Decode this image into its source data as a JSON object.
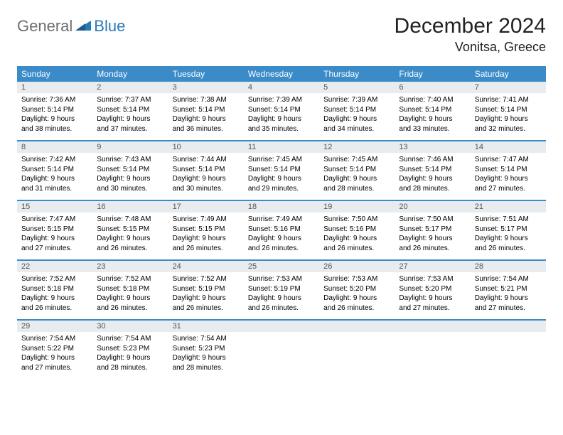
{
  "logo": {
    "text_general": "General",
    "text_blue": "Blue"
  },
  "title": {
    "month": "December 2024",
    "location": "Vonitsa, Greece"
  },
  "colors": {
    "header_bg": "#3b8bc9",
    "header_text": "#ffffff",
    "day_number_bg": "#e8ecef",
    "day_number_text": "#555555",
    "border": "#3b8bc9",
    "logo_general": "#6e6e6e",
    "logo_blue": "#2a7ab8"
  },
  "day_names": [
    "Sunday",
    "Monday",
    "Tuesday",
    "Wednesday",
    "Thursday",
    "Friday",
    "Saturday"
  ],
  "weeks": [
    [
      {
        "num": "1",
        "sunrise": "Sunrise: 7:36 AM",
        "sunset": "Sunset: 5:14 PM",
        "daylight": "Daylight: 9 hours and 38 minutes."
      },
      {
        "num": "2",
        "sunrise": "Sunrise: 7:37 AM",
        "sunset": "Sunset: 5:14 PM",
        "daylight": "Daylight: 9 hours and 37 minutes."
      },
      {
        "num": "3",
        "sunrise": "Sunrise: 7:38 AM",
        "sunset": "Sunset: 5:14 PM",
        "daylight": "Daylight: 9 hours and 36 minutes."
      },
      {
        "num": "4",
        "sunrise": "Sunrise: 7:39 AM",
        "sunset": "Sunset: 5:14 PM",
        "daylight": "Daylight: 9 hours and 35 minutes."
      },
      {
        "num": "5",
        "sunrise": "Sunrise: 7:39 AM",
        "sunset": "Sunset: 5:14 PM",
        "daylight": "Daylight: 9 hours and 34 minutes."
      },
      {
        "num": "6",
        "sunrise": "Sunrise: 7:40 AM",
        "sunset": "Sunset: 5:14 PM",
        "daylight": "Daylight: 9 hours and 33 minutes."
      },
      {
        "num": "7",
        "sunrise": "Sunrise: 7:41 AM",
        "sunset": "Sunset: 5:14 PM",
        "daylight": "Daylight: 9 hours and 32 minutes."
      }
    ],
    [
      {
        "num": "8",
        "sunrise": "Sunrise: 7:42 AM",
        "sunset": "Sunset: 5:14 PM",
        "daylight": "Daylight: 9 hours and 31 minutes."
      },
      {
        "num": "9",
        "sunrise": "Sunrise: 7:43 AM",
        "sunset": "Sunset: 5:14 PM",
        "daylight": "Daylight: 9 hours and 30 minutes."
      },
      {
        "num": "10",
        "sunrise": "Sunrise: 7:44 AM",
        "sunset": "Sunset: 5:14 PM",
        "daylight": "Daylight: 9 hours and 30 minutes."
      },
      {
        "num": "11",
        "sunrise": "Sunrise: 7:45 AM",
        "sunset": "Sunset: 5:14 PM",
        "daylight": "Daylight: 9 hours and 29 minutes."
      },
      {
        "num": "12",
        "sunrise": "Sunrise: 7:45 AM",
        "sunset": "Sunset: 5:14 PM",
        "daylight": "Daylight: 9 hours and 28 minutes."
      },
      {
        "num": "13",
        "sunrise": "Sunrise: 7:46 AM",
        "sunset": "Sunset: 5:14 PM",
        "daylight": "Daylight: 9 hours and 28 minutes."
      },
      {
        "num": "14",
        "sunrise": "Sunrise: 7:47 AM",
        "sunset": "Sunset: 5:14 PM",
        "daylight": "Daylight: 9 hours and 27 minutes."
      }
    ],
    [
      {
        "num": "15",
        "sunrise": "Sunrise: 7:47 AM",
        "sunset": "Sunset: 5:15 PM",
        "daylight": "Daylight: 9 hours and 27 minutes."
      },
      {
        "num": "16",
        "sunrise": "Sunrise: 7:48 AM",
        "sunset": "Sunset: 5:15 PM",
        "daylight": "Daylight: 9 hours and 26 minutes."
      },
      {
        "num": "17",
        "sunrise": "Sunrise: 7:49 AM",
        "sunset": "Sunset: 5:15 PM",
        "daylight": "Daylight: 9 hours and 26 minutes."
      },
      {
        "num": "18",
        "sunrise": "Sunrise: 7:49 AM",
        "sunset": "Sunset: 5:16 PM",
        "daylight": "Daylight: 9 hours and 26 minutes."
      },
      {
        "num": "19",
        "sunrise": "Sunrise: 7:50 AM",
        "sunset": "Sunset: 5:16 PM",
        "daylight": "Daylight: 9 hours and 26 minutes."
      },
      {
        "num": "20",
        "sunrise": "Sunrise: 7:50 AM",
        "sunset": "Sunset: 5:17 PM",
        "daylight": "Daylight: 9 hours and 26 minutes."
      },
      {
        "num": "21",
        "sunrise": "Sunrise: 7:51 AM",
        "sunset": "Sunset: 5:17 PM",
        "daylight": "Daylight: 9 hours and 26 minutes."
      }
    ],
    [
      {
        "num": "22",
        "sunrise": "Sunrise: 7:52 AM",
        "sunset": "Sunset: 5:18 PM",
        "daylight": "Daylight: 9 hours and 26 minutes."
      },
      {
        "num": "23",
        "sunrise": "Sunrise: 7:52 AM",
        "sunset": "Sunset: 5:18 PM",
        "daylight": "Daylight: 9 hours and 26 minutes."
      },
      {
        "num": "24",
        "sunrise": "Sunrise: 7:52 AM",
        "sunset": "Sunset: 5:19 PM",
        "daylight": "Daylight: 9 hours and 26 minutes."
      },
      {
        "num": "25",
        "sunrise": "Sunrise: 7:53 AM",
        "sunset": "Sunset: 5:19 PM",
        "daylight": "Daylight: 9 hours and 26 minutes."
      },
      {
        "num": "26",
        "sunrise": "Sunrise: 7:53 AM",
        "sunset": "Sunset: 5:20 PM",
        "daylight": "Daylight: 9 hours and 26 minutes."
      },
      {
        "num": "27",
        "sunrise": "Sunrise: 7:53 AM",
        "sunset": "Sunset: 5:20 PM",
        "daylight": "Daylight: 9 hours and 27 minutes."
      },
      {
        "num": "28",
        "sunrise": "Sunrise: 7:54 AM",
        "sunset": "Sunset: 5:21 PM",
        "daylight": "Daylight: 9 hours and 27 minutes."
      }
    ],
    [
      {
        "num": "29",
        "sunrise": "Sunrise: 7:54 AM",
        "sunset": "Sunset: 5:22 PM",
        "daylight": "Daylight: 9 hours and 27 minutes."
      },
      {
        "num": "30",
        "sunrise": "Sunrise: 7:54 AM",
        "sunset": "Sunset: 5:23 PM",
        "daylight": "Daylight: 9 hours and 28 minutes."
      },
      {
        "num": "31",
        "sunrise": "Sunrise: 7:54 AM",
        "sunset": "Sunset: 5:23 PM",
        "daylight": "Daylight: 9 hours and 28 minutes."
      },
      {
        "num": "",
        "sunrise": "",
        "sunset": "",
        "daylight": ""
      },
      {
        "num": "",
        "sunrise": "",
        "sunset": "",
        "daylight": ""
      },
      {
        "num": "",
        "sunrise": "",
        "sunset": "",
        "daylight": ""
      },
      {
        "num": "",
        "sunrise": "",
        "sunset": "",
        "daylight": ""
      }
    ]
  ]
}
